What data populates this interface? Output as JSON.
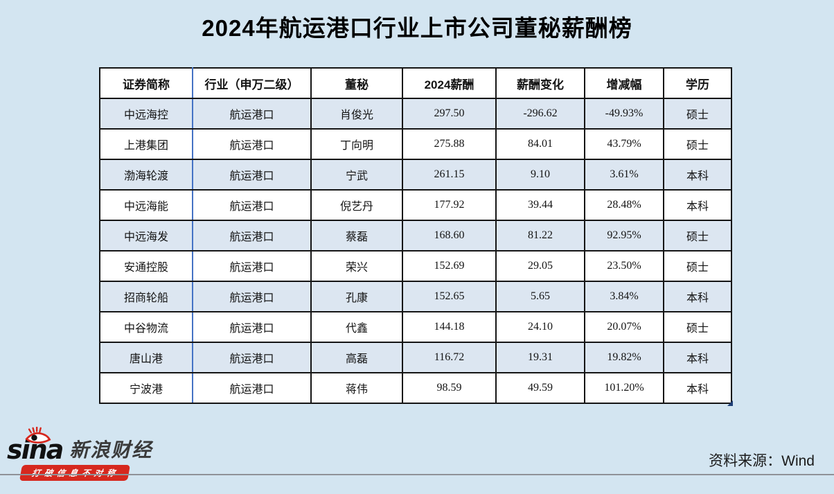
{
  "title": "2024年航运港口行业上市公司董秘薪酬榜",
  "table": {
    "headers": [
      "证券简称",
      "行业（申万二级）",
      "董秘",
      "2024薪酬",
      "薪酬变化",
      "增减幅",
      "学历"
    ],
    "rows": [
      [
        "中远海控",
        "航运港口",
        "肖俊光",
        "297.50",
        "-296.62",
        "-49.93%",
        "硕士"
      ],
      [
        "上港集团",
        "航运港口",
        "丁向明",
        "275.88",
        "84.01",
        "43.79%",
        "硕士"
      ],
      [
        "渤海轮渡",
        "航运港口",
        "宁武",
        "261.15",
        "9.10",
        "3.61%",
        "本科"
      ],
      [
        "中远海能",
        "航运港口",
        "倪艺丹",
        "177.92",
        "39.44",
        "28.48%",
        "本科"
      ],
      [
        "中远海发",
        "航运港口",
        "蔡磊",
        "168.60",
        "81.22",
        "92.95%",
        "硕士"
      ],
      [
        "安通控股",
        "航运港口",
        "荣兴",
        "152.69",
        "29.05",
        "23.50%",
        "硕士"
      ],
      [
        "招商轮船",
        "航运港口",
        "孔康",
        "152.65",
        "5.65",
        "3.84%",
        "本科"
      ],
      [
        "中谷物流",
        "航运港口",
        "代鑫",
        "144.18",
        "24.10",
        "20.07%",
        "硕士"
      ],
      [
        "唐山港",
        "航运港口",
        "高磊",
        "116.72",
        "19.31",
        "19.82%",
        "本科"
      ],
      [
        "宁波港",
        "航运港口",
        "蒋伟",
        "98.59",
        "49.59",
        "101.20%",
        "本科"
      ]
    ]
  },
  "footer": {
    "logo_word": "sina",
    "logo_brand": "新浪财经",
    "logo_slogan": "打破信息不对称",
    "source": "资料来源：Wind"
  },
  "icons": {
    "sina_eye": "sina-eye-icon"
  },
  "colors": {
    "page_bg": "#d3e5f1",
    "row_alt_bg": "#dce6f1",
    "header_bg": "#ffffff",
    "border": "#151515",
    "freeze_divider": "#4472c4",
    "sina_red": "#d6281e",
    "divider_line": "#8f9298"
  }
}
